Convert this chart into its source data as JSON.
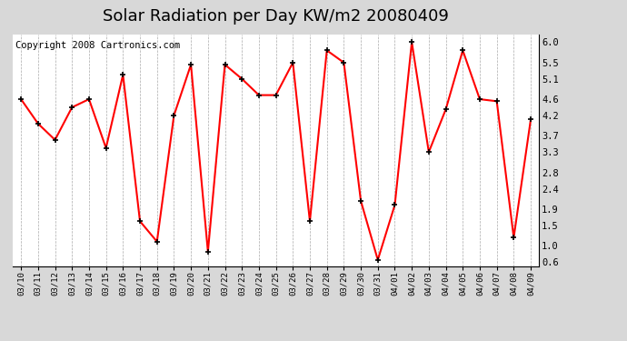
{
  "title": "Solar Radiation per Day KW/m2 20080409",
  "copyright": "Copyright 2008 Cartronics.com",
  "dates": [
    "03/10",
    "03/11",
    "03/12",
    "03/13",
    "03/14",
    "03/15",
    "03/16",
    "03/17",
    "03/18",
    "03/19",
    "03/20",
    "03/21",
    "03/22",
    "03/23",
    "03/24",
    "03/25",
    "03/26",
    "03/27",
    "03/28",
    "03/29",
    "03/30",
    "03/31",
    "04/01",
    "04/02",
    "04/03",
    "04/04",
    "04/05",
    "04/06",
    "04/07",
    "04/08",
    "04/09"
  ],
  "values": [
    4.6,
    4.0,
    3.6,
    4.4,
    4.6,
    3.4,
    5.2,
    1.6,
    1.1,
    4.2,
    5.45,
    0.85,
    5.45,
    5.1,
    4.7,
    4.7,
    5.5,
    1.6,
    5.8,
    5.5,
    2.1,
    0.65,
    2.0,
    6.0,
    3.3,
    4.35,
    5.8,
    4.6,
    4.55,
    1.2,
    4.1
  ],
  "line_color": "#ff0000",
  "marker_color": "#000000",
  "bg_color": "#d8d8d8",
  "plot_bg_color": "#ffffff",
  "grid_color": "#aaaaaa",
  "yticks": [
    0.6,
    1.0,
    1.5,
    1.9,
    2.4,
    2.8,
    3.3,
    3.7,
    4.2,
    4.6,
    5.1,
    5.5,
    6.0
  ],
  "ylim": [
    0.5,
    6.2
  ],
  "title_fontsize": 13,
  "copyright_fontsize": 7.5
}
